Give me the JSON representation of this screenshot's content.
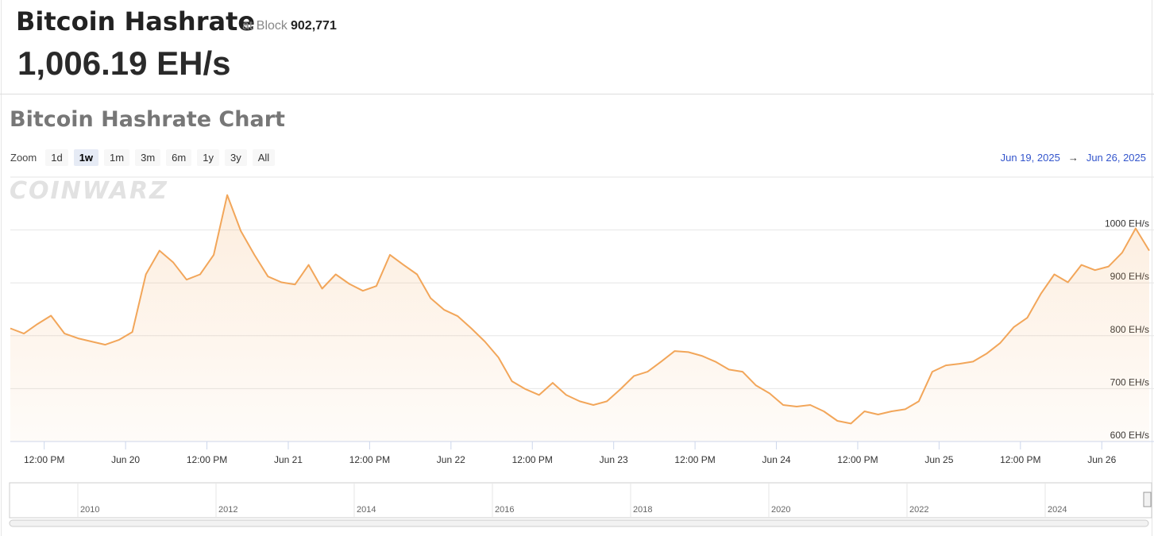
{
  "header": {
    "title": "Bitcoin Hashrate",
    "block_label": "at Block",
    "block": "902,771",
    "value": "1,006.19 EH/s"
  },
  "chart_title": "Bitcoin Hashrate Chart",
  "zoom": {
    "label": "Zoom",
    "buttons": [
      "1d",
      "1w",
      "1m",
      "3m",
      "6m",
      "1y",
      "3y",
      "All"
    ],
    "active": "1w"
  },
  "range": {
    "from": "Jun 19, 2025",
    "arrow": "→",
    "to": "Jun 26, 2025"
  },
  "watermark": "COINWARZ",
  "chart_data": {
    "type": "line",
    "color": "#f2a65a",
    "grid": true,
    "x": [
      "2025-06-19 07:00",
      "2025-06-19 09:00",
      "2025-06-19 11:00",
      "2025-06-19 13:00",
      "2025-06-19 15:00",
      "2025-06-19 17:00",
      "2025-06-19 19:00",
      "2025-06-19 21:00",
      "2025-06-19 23:00",
      "2025-06-20 01:00",
      "2025-06-20 03:00",
      "2025-06-20 05:00",
      "2025-06-20 07:00",
      "2025-06-20 09:00",
      "2025-06-20 11:00",
      "2025-06-20 13:00",
      "2025-06-20 15:00",
      "2025-06-20 17:00",
      "2025-06-20 19:00",
      "2025-06-20 21:00",
      "2025-06-20 23:00",
      "2025-06-21 01:00",
      "2025-06-21 03:00",
      "2025-06-21 05:00",
      "2025-06-21 07:00",
      "2025-06-21 09:00",
      "2025-06-21 11:00",
      "2025-06-21 13:00",
      "2025-06-21 15:00",
      "2025-06-21 17:00",
      "2025-06-21 19:00",
      "2025-06-21 21:00",
      "2025-06-21 23:00",
      "2025-06-22 01:00",
      "2025-06-22 03:00",
      "2025-06-22 05:00",
      "2025-06-22 07:00",
      "2025-06-22 09:00",
      "2025-06-22 11:00",
      "2025-06-22 13:00",
      "2025-06-22 15:00",
      "2025-06-22 17:00",
      "2025-06-22 19:00",
      "2025-06-22 21:00",
      "2025-06-22 23:00",
      "2025-06-23 01:00",
      "2025-06-23 03:00",
      "2025-06-23 05:00",
      "2025-06-23 07:00",
      "2025-06-23 09:00",
      "2025-06-23 11:00",
      "2025-06-23 13:00",
      "2025-06-23 15:00",
      "2025-06-23 17:00",
      "2025-06-23 19:00",
      "2025-06-23 21:00",
      "2025-06-23 23:00",
      "2025-06-24 01:00",
      "2025-06-24 03:00",
      "2025-06-24 05:00",
      "2025-06-24 07:00",
      "2025-06-24 09:00",
      "2025-06-24 11:00",
      "2025-06-24 13:00",
      "2025-06-24 15:00",
      "2025-06-24 17:00",
      "2025-06-24 19:00",
      "2025-06-24 21:00",
      "2025-06-24 23:00",
      "2025-06-25 01:00",
      "2025-06-25 03:00",
      "2025-06-25 05:00",
      "2025-06-25 07:00",
      "2025-06-25 09:00",
      "2025-06-25 11:00",
      "2025-06-25 13:00",
      "2025-06-25 15:00",
      "2025-06-25 17:00",
      "2025-06-25 19:00",
      "2025-06-25 21:00",
      "2025-06-25 23:00",
      "2025-06-26 01:00",
      "2025-06-26 03:00",
      "2025-06-26 05:00",
      "2025-06-26 07:00"
    ],
    "values": [
      814,
      804,
      822,
      838,
      804,
      795,
      789,
      783,
      792,
      807,
      916,
      961,
      939,
      906,
      916,
      953,
      1066,
      998,
      953,
      912,
      901,
      897,
      934,
      889,
      916,
      898,
      885,
      894,
      953,
      934,
      916,
      871,
      849,
      837,
      814,
      789,
      759,
      714,
      699,
      688,
      711,
      688,
      676,
      669,
      676,
      699,
      724,
      732,
      751,
      771,
      769,
      762,
      751,
      736,
      732,
      706,
      691,
      669,
      666,
      669,
      657,
      639,
      634,
      657,
      651,
      657,
      661,
      676,
      732,
      744,
      747,
      751,
      766,
      786,
      816,
      834,
      879,
      916,
      901,
      934,
      924,
      931,
      957,
      1003,
      961
    ],
    "xlim": [
      "2025-06-19 07:00",
      "2025-06-26 07:00"
    ],
    "xticks": [
      {
        "value": "2025-06-19 12:00",
        "label": "12:00 PM"
      },
      {
        "value": "2025-06-20 00:00",
        "label": "Jun 20"
      },
      {
        "value": "2025-06-20 12:00",
        "label": "12:00 PM"
      },
      {
        "value": "2025-06-21 00:00",
        "label": "Jun 21"
      },
      {
        "value": "2025-06-21 12:00",
        "label": "12:00 PM"
      },
      {
        "value": "2025-06-22 00:00",
        "label": "Jun 22"
      },
      {
        "value": "2025-06-22 12:00",
        "label": "12:00 PM"
      },
      {
        "value": "2025-06-23 00:00",
        "label": "Jun 23"
      },
      {
        "value": "2025-06-23 12:00",
        "label": "12:00 PM"
      },
      {
        "value": "2025-06-24 00:00",
        "label": "Jun 24"
      },
      {
        "value": "2025-06-24 12:00",
        "label": "12:00 PM"
      },
      {
        "value": "2025-06-25 00:00",
        "label": "Jun 25"
      },
      {
        "value": "2025-06-25 12:00",
        "label": "12:00 PM"
      },
      {
        "value": "2025-06-26 00:00",
        "label": "Jun 26"
      }
    ],
    "ylim": [
      600,
      1100
    ],
    "yticks": [
      {
        "value": 600,
        "label": "600 EH/s"
      },
      {
        "value": 700,
        "label": "700 EH/s"
      },
      {
        "value": 800,
        "label": "800 EH/s"
      },
      {
        "value": 900,
        "label": "900 EH/s"
      },
      {
        "value": 1000,
        "label": "1000 EH/s"
      }
    ]
  },
  "navigator": {
    "labels": [
      "2010",
      "2012",
      "2014",
      "2016",
      "2018",
      "2020",
      "2022",
      "2024"
    ]
  }
}
